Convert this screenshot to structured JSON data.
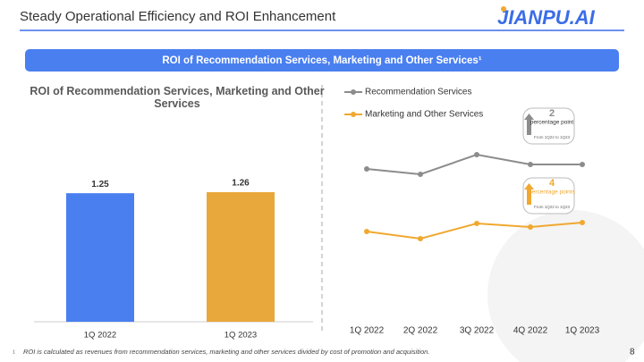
{
  "header": {
    "title": "Steady Operational Efficiency and ROI Enhancement",
    "logo": "JIANPU.AI"
  },
  "banner": "ROI of Recommendation Services, Marketing and Other Services¹",
  "chart_data": [
    {
      "type": "bar",
      "title": "ROI of Recommendation  Services, Marketing and Other Services",
      "categories": [
        "1Q 2022",
        "1Q 2023"
      ],
      "values": [
        1.25,
        1.26
      ],
      "colors": [
        "#4a7ff0",
        "#e8a83c"
      ]
    },
    {
      "type": "line",
      "categories": [
        "1Q 2022",
        "2Q 2022",
        "3Q 2022",
        "4Q 2022",
        "1Q 2023"
      ],
      "ylim": [
        60,
        150
      ],
      "series": [
        {
          "name": "Recommendation Services",
          "color": "#8c8c8c",
          "values": [
            130,
            127.6,
            136.4,
            132,
            132
          ]
        },
        {
          "name": "Marketing and Other Services",
          "color": "#f0a830",
          "values": [
            102,
            98.8,
            105.6,
            104,
            106
          ]
        }
      ],
      "annotations": [
        {
          "value": "2",
          "unit": "percentage point",
          "note": "From 1Q22 to 1Q23"
        },
        {
          "value": "4",
          "unit": "percentage points",
          "note": "From 1Q22 to 1Q23"
        }
      ]
    }
  ],
  "footnote": {
    "marker": "1",
    "text": "ROI is calculated as revenues from recommendation services, marketing and other services divided by cost of promotion and acquisition."
  },
  "page_number": "8"
}
